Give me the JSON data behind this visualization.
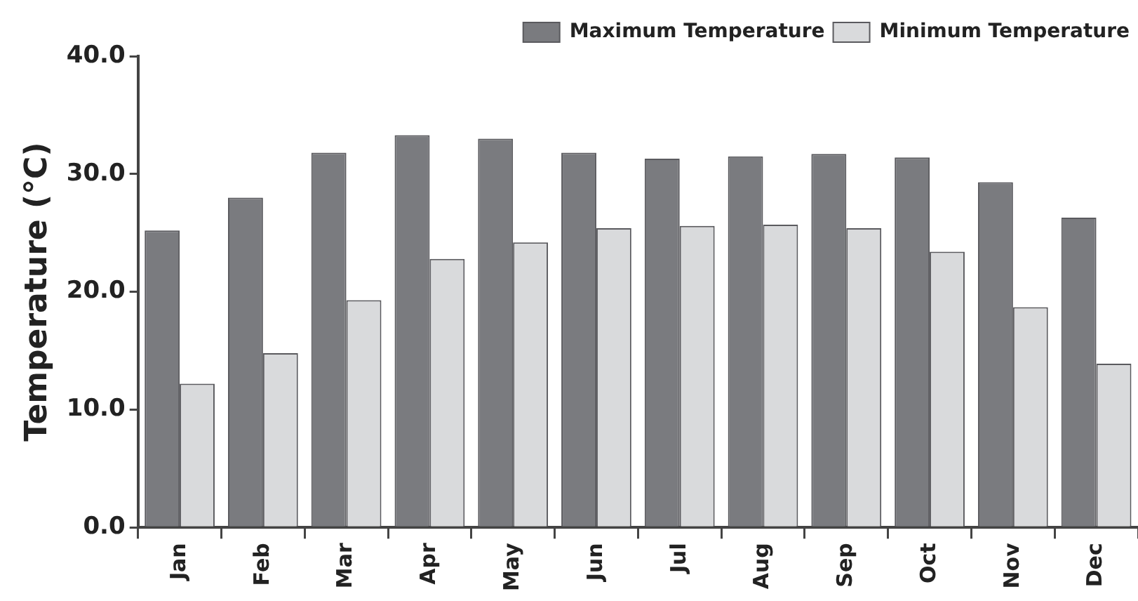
{
  "chart_data": {
    "type": "bar",
    "ylabel": "Temperature (°C)",
    "categories": [
      "Jan",
      "Feb",
      "Mar",
      "Apr",
      "May",
      "Jun",
      "Jul",
      "Aug",
      "Sep",
      "Oct",
      "Nov",
      "Dec"
    ],
    "series": [
      {
        "name": "Maximum Temperature",
        "color": "#7a7b7f",
        "values": [
          25.2,
          28.0,
          31.8,
          33.3,
          33.0,
          31.8,
          31.3,
          31.5,
          31.7,
          31.4,
          29.3,
          26.3
        ]
      },
      {
        "name": "Minimum Temperature",
        "color": "#d9dadc",
        "values": [
          12.2,
          14.8,
          19.3,
          22.8,
          24.2,
          25.4,
          25.6,
          25.7,
          25.4,
          23.4,
          18.7,
          13.9
        ]
      }
    ],
    "ylim": [
      0,
      40
    ],
    "yticks": [
      {
        "value": 0,
        "label": "0.0"
      },
      {
        "value": 10,
        "label": "10.0"
      },
      {
        "value": 20,
        "label": "20.0"
      },
      {
        "value": 30,
        "label": "30.0"
      },
      {
        "value": 40,
        "label": "40.0"
      }
    ],
    "grid": false,
    "legend": "top right"
  }
}
